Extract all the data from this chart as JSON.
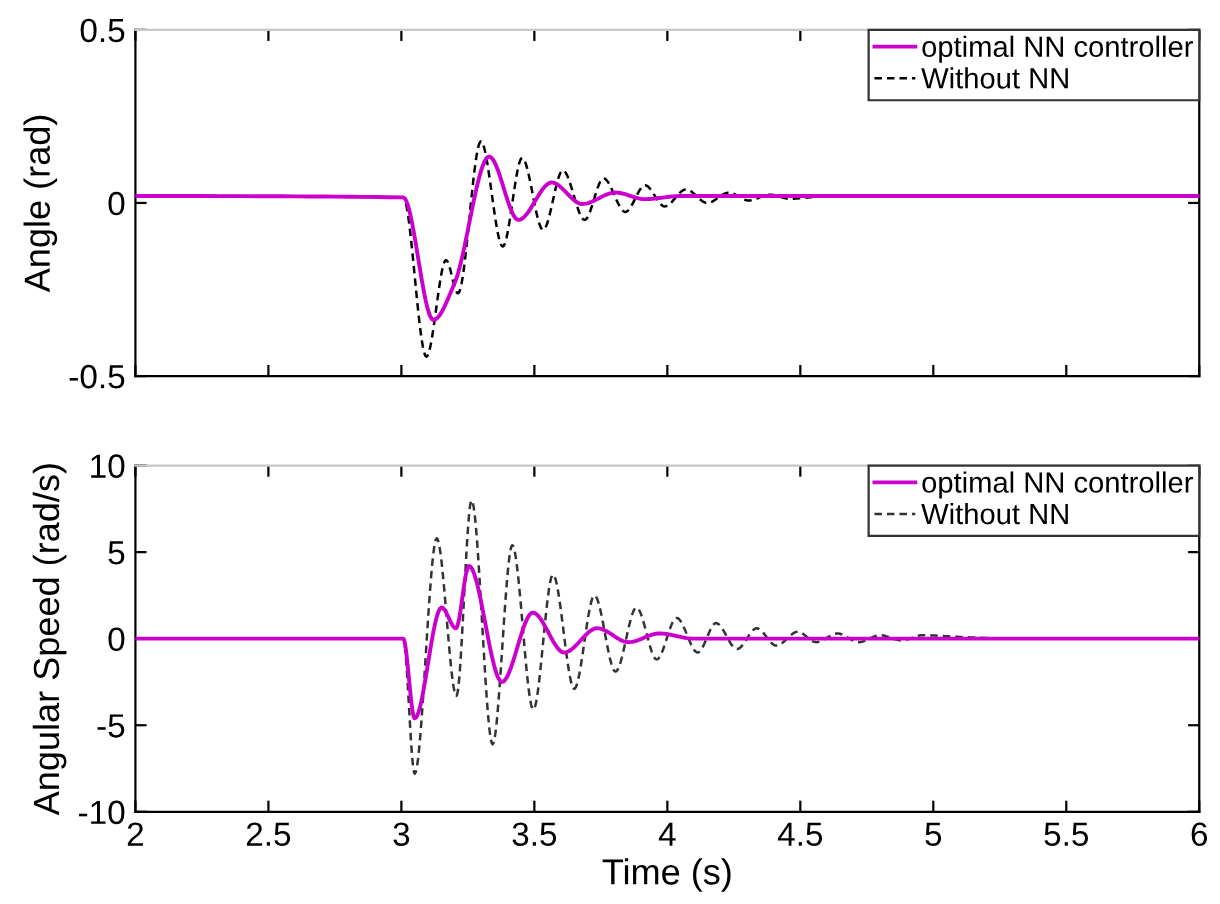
{
  "chart_data": [
    {
      "type": "line",
      "ylabel": "Angle (rad)",
      "xlim": [
        2,
        6
      ],
      "xticks": [
        2,
        2.5,
        3,
        3.5,
        4,
        4.5,
        5,
        5.5,
        6
      ],
      "ylim": [
        -0.5,
        0.5
      ],
      "yticks": [
        -0.5,
        0,
        0.5
      ],
      "tick_labels": "y",
      "legend": "top right",
      "grid": false,
      "series": [
        {
          "name": "optimal NN controller",
          "color": "#cc00cc",
          "line_style": "solid",
          "x": [
            2,
            3.007,
            3.12,
            3.2,
            3.33,
            3.44,
            3.565,
            3.68,
            3.805,
            3.916,
            4.05,
            6
          ],
          "values": [
            0.02,
            0.016,
            -0.338,
            -0.232,
            0.134,
            -0.049,
            0.059,
            -0.003,
            0.03,
            0.011,
            0.02,
            0.02
          ]
        },
        {
          "name": "Without NN",
          "color": "#000000",
          "line_style": "dashed",
          "x": [
            2,
            3.007,
            3.094,
            3.168,
            3.213,
            3.299,
            3.381,
            3.454,
            3.533,
            3.607,
            3.689,
            3.76,
            3.842,
            3.916,
            3.99,
            4.07,
            4.15,
            4.232,
            4.306,
            4.385,
            4.46,
            4.6,
            6
          ],
          "values": [
            0.02,
            0.016,
            -0.444,
            -0.165,
            -0.261,
            0.178,
            -0.126,
            0.13,
            -0.078,
            0.094,
            -0.049,
            0.071,
            -0.026,
            0.051,
            -0.01,
            0.039,
            0.0,
            0.03,
            0.007,
            0.024,
            0.012,
            0.02,
            0.02
          ]
        }
      ]
    },
    {
      "type": "line",
      "xlabel": "Time (s)",
      "ylabel": "Angular Speed (rad/s)",
      "xlim": [
        2,
        6
      ],
      "xticks": [
        2,
        2.5,
        3,
        3.5,
        4,
        4.5,
        5,
        5.5,
        6
      ],
      "ylim": [
        -10,
        10
      ],
      "yticks": [
        -10,
        -5,
        0,
        5,
        10
      ],
      "legend": "top right",
      "grid": false,
      "series": [
        {
          "name": "optimal NN controller",
          "color": "#cc00cc",
          "line_style": "solid",
          "x": [
            2,
            3.007,
            3.05,
            3.151,
            3.205,
            3.254,
            3.378,
            3.494,
            3.612,
            3.736,
            3.854,
            3.97,
            4.1,
            6
          ],
          "values": [
            0,
            0,
            -4.6,
            1.8,
            0.6,
            4.2,
            -2.5,
            1.5,
            -0.8,
            0.6,
            -0.2,
            0.3,
            0,
            0
          ]
        },
        {
          "name": "Without NN",
          "color": "#333333",
          "line_style": "dashed",
          "x": [
            2,
            3.007,
            3.05,
            3.133,
            3.207,
            3.264,
            3.343,
            3.417,
            3.496,
            3.57,
            3.65,
            3.726,
            3.805,
            3.884,
            3.96,
            4.035,
            4.114,
            4.183,
            4.262,
            4.336,
            4.41,
            4.49,
            4.56,
            4.64,
            4.72,
            4.8,
            4.88,
            4.96,
            5.1,
            5.3,
            6
          ],
          "values": [
            0,
            0,
            -7.8,
            5.8,
            -3.3,
            8.0,
            -6.1,
            5.4,
            -4.1,
            3.7,
            -2.9,
            2.5,
            -1.9,
            1.8,
            -1.2,
            1.2,
            -0.8,
            0.9,
            -0.6,
            0.6,
            -0.4,
            0.4,
            -0.2,
            0.3,
            -0.2,
            0.2,
            -0.1,
            0.2,
            0.1,
            0,
            0
          ]
        }
      ]
    }
  ]
}
